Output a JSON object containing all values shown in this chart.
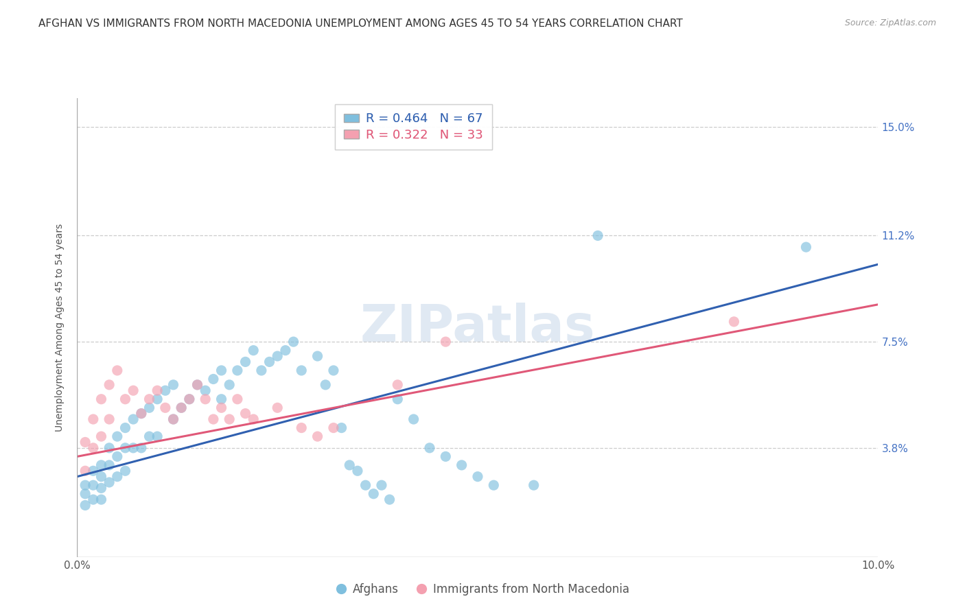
{
  "title": "AFGHAN VS IMMIGRANTS FROM NORTH MACEDONIA UNEMPLOYMENT AMONG AGES 45 TO 54 YEARS CORRELATION CHART",
  "source": "Source: ZipAtlas.com",
  "ylabel": "Unemployment Among Ages 45 to 54 years",
  "xmin": 0.0,
  "xmax": 0.1,
  "ymin": 0.0,
  "ymax": 0.16,
  "yticks": [
    0.038,
    0.075,
    0.112,
    0.15
  ],
  "ytick_labels": [
    "3.8%",
    "7.5%",
    "11.2%",
    "15.0%"
  ],
  "xticks": [
    0.0,
    0.02,
    0.04,
    0.06,
    0.08,
    0.1
  ],
  "xtick_labels": [
    "0.0%",
    "",
    "",
    "",
    "",
    "10.0%"
  ],
  "legend_labels": [
    "Afghans",
    "Immigrants from North Macedonia"
  ],
  "blue_R": 0.464,
  "blue_N": 67,
  "pink_R": 0.322,
  "pink_N": 33,
  "blue_color": "#7fbfde",
  "pink_color": "#f4a0b0",
  "blue_line_color": "#3060b0",
  "pink_line_color": "#e05878",
  "watermark": "ZIPatlas",
  "title_fontsize": 11,
  "axis_label_fontsize": 10,
  "tick_fontsize": 11,
  "blue_line_start_y": 0.028,
  "blue_line_end_y": 0.102,
  "pink_line_start_y": 0.035,
  "pink_line_end_y": 0.088,
  "blue_scatter_x": [
    0.001,
    0.001,
    0.001,
    0.002,
    0.002,
    0.002,
    0.003,
    0.003,
    0.003,
    0.003,
    0.004,
    0.004,
    0.004,
    0.005,
    0.005,
    0.005,
    0.006,
    0.006,
    0.006,
    0.007,
    0.007,
    0.008,
    0.008,
    0.009,
    0.009,
    0.01,
    0.01,
    0.011,
    0.012,
    0.012,
    0.013,
    0.014,
    0.015,
    0.016,
    0.017,
    0.018,
    0.018,
    0.019,
    0.02,
    0.021,
    0.022,
    0.023,
    0.024,
    0.025,
    0.026,
    0.027,
    0.028,
    0.03,
    0.031,
    0.032,
    0.033,
    0.034,
    0.035,
    0.036,
    0.037,
    0.038,
    0.039,
    0.04,
    0.042,
    0.044,
    0.046,
    0.048,
    0.05,
    0.052,
    0.057,
    0.065,
    0.091
  ],
  "blue_scatter_y": [
    0.025,
    0.022,
    0.018,
    0.03,
    0.025,
    0.02,
    0.032,
    0.028,
    0.024,
    0.02,
    0.038,
    0.032,
    0.026,
    0.042,
    0.035,
    0.028,
    0.045,
    0.038,
    0.03,
    0.048,
    0.038,
    0.05,
    0.038,
    0.052,
    0.042,
    0.055,
    0.042,
    0.058,
    0.06,
    0.048,
    0.052,
    0.055,
    0.06,
    0.058,
    0.062,
    0.065,
    0.055,
    0.06,
    0.065,
    0.068,
    0.072,
    0.065,
    0.068,
    0.07,
    0.072,
    0.075,
    0.065,
    0.07,
    0.06,
    0.065,
    0.045,
    0.032,
    0.03,
    0.025,
    0.022,
    0.025,
    0.02,
    0.055,
    0.048,
    0.038,
    0.035,
    0.032,
    0.028,
    0.025,
    0.025,
    0.112,
    0.108
  ],
  "pink_scatter_x": [
    0.001,
    0.001,
    0.002,
    0.002,
    0.003,
    0.003,
    0.004,
    0.004,
    0.005,
    0.006,
    0.007,
    0.008,
    0.009,
    0.01,
    0.011,
    0.012,
    0.013,
    0.014,
    0.015,
    0.016,
    0.017,
    0.018,
    0.019,
    0.02,
    0.021,
    0.022,
    0.025,
    0.028,
    0.03,
    0.032,
    0.04,
    0.046,
    0.082
  ],
  "pink_scatter_y": [
    0.04,
    0.03,
    0.048,
    0.038,
    0.055,
    0.042,
    0.06,
    0.048,
    0.065,
    0.055,
    0.058,
    0.05,
    0.055,
    0.058,
    0.052,
    0.048,
    0.052,
    0.055,
    0.06,
    0.055,
    0.048,
    0.052,
    0.048,
    0.055,
    0.05,
    0.048,
    0.052,
    0.045,
    0.042,
    0.045,
    0.06,
    0.075,
    0.082
  ]
}
